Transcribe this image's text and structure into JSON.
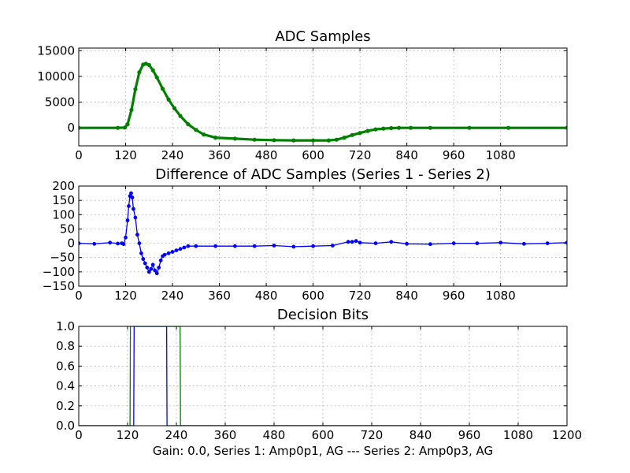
{
  "figure": {
    "xlabel": "Gain: 0.0, Series 1: Amp0p1, AG --- Series 2: Amp0p3, AG"
  },
  "chart_data": [
    {
      "type": "scatter",
      "title": "ADC Samples",
      "xlabel": "",
      "ylabel": "",
      "xlim": [
        0,
        1250
      ],
      "ylim": [
        -3500,
        15500
      ],
      "xticks": [
        0,
        120,
        240,
        360,
        480,
        600,
        720,
        840,
        960,
        1080
      ],
      "yticks": [
        0,
        5000,
        10000,
        15000
      ],
      "grid": true,
      "series": [
        {
          "color": "#007f00",
          "marker": "dot",
          "x": [
            0,
            100,
            118,
            125,
            135,
            145,
            155,
            165,
            172,
            180,
            190,
            200,
            215,
            230,
            245,
            260,
            280,
            300,
            320,
            350,
            400,
            450,
            500,
            550,
            600,
            640,
            660,
            680,
            700,
            720,
            740,
            760,
            780,
            800,
            820,
            850,
            900,
            1000,
            1100,
            1250
          ],
          "y": [
            0,
            0,
            50,
            700,
            3500,
            7500,
            10800,
            12300,
            12450,
            12200,
            11200,
            9800,
            7600,
            5500,
            3800,
            2300,
            700,
            -400,
            -1300,
            -1900,
            -2100,
            -2300,
            -2400,
            -2450,
            -2450,
            -2450,
            -2300,
            -1900,
            -1400,
            -1000,
            -600,
            -300,
            -150,
            -60,
            0,
            0,
            0,
            0,
            0,
            0
          ]
        }
      ]
    },
    {
      "type": "line",
      "title": "Difference of ADC Samples (Series 1 - Series 2)",
      "xlabel": "",
      "ylabel": "",
      "xlim": [
        0,
        1250
      ],
      "ylim": [
        -150,
        200
      ],
      "xticks": [
        0,
        120,
        240,
        360,
        480,
        600,
        720,
        840,
        960,
        1080
      ],
      "yticks": [
        -150,
        -100,
        -50,
        0,
        50,
        100,
        150,
        200
      ],
      "grid": true,
      "series": [
        {
          "color": "#0000ff",
          "marker": "dot",
          "x": [
            0,
            40,
            80,
            100,
            110,
            115,
            120,
            125,
            128,
            131,
            134,
            137,
            140,
            145,
            150,
            155,
            160,
            165,
            170,
            175,
            180,
            185,
            190,
            195,
            200,
            205,
            210,
            215,
            220,
            230,
            240,
            250,
            260,
            270,
            280,
            300,
            350,
            400,
            450,
            500,
            550,
            600,
            650,
            690,
            700,
            710,
            720,
            760,
            800,
            840,
            900,
            960,
            1020,
            1080,
            1140,
            1200,
            1250
          ],
          "y": [
            0,
            -2,
            2,
            -1,
            0,
            -3,
            20,
            80,
            130,
            165,
            175,
            160,
            120,
            90,
            30,
            0,
            -35,
            -55,
            -70,
            -85,
            -100,
            -90,
            -75,
            -95,
            -105,
            -85,
            -60,
            -45,
            -40,
            -35,
            -30,
            -25,
            -20,
            -15,
            -10,
            -10,
            -10,
            -10,
            -10,
            -8,
            -12,
            -10,
            -8,
            5,
            5,
            8,
            2,
            0,
            5,
            -2,
            -3,
            0,
            0,
            2,
            -2,
            0,
            2
          ]
        }
      ]
    },
    {
      "type": "line",
      "title": "Decision Bits",
      "xlabel": "Gain: 0.0, Series 1: Amp0p1, AG --- Series 2: Amp0p3, AG",
      "ylabel": "",
      "xlim": [
        0,
        1200
      ],
      "ylim": [
        0,
        1.0
      ],
      "xticks": [
        0,
        120,
        240,
        360,
        480,
        600,
        720,
        840,
        960,
        1080,
        1200
      ],
      "yticks": [
        0.0,
        0.2,
        0.4,
        0.6,
        0.8,
        1.0
      ],
      "grid": true,
      "series": [
        {
          "color": "#007f00",
          "x": [
            0,
            126,
            127,
            249,
            250,
            1200
          ],
          "y": [
            0,
            0,
            1,
            1,
            0,
            0
          ]
        },
        {
          "color": "#0000ff",
          "x": [
            0,
            135,
            136,
            216,
            217,
            1200
          ],
          "y": [
            0,
            0,
            1,
            1,
            0,
            0
          ]
        }
      ]
    }
  ]
}
